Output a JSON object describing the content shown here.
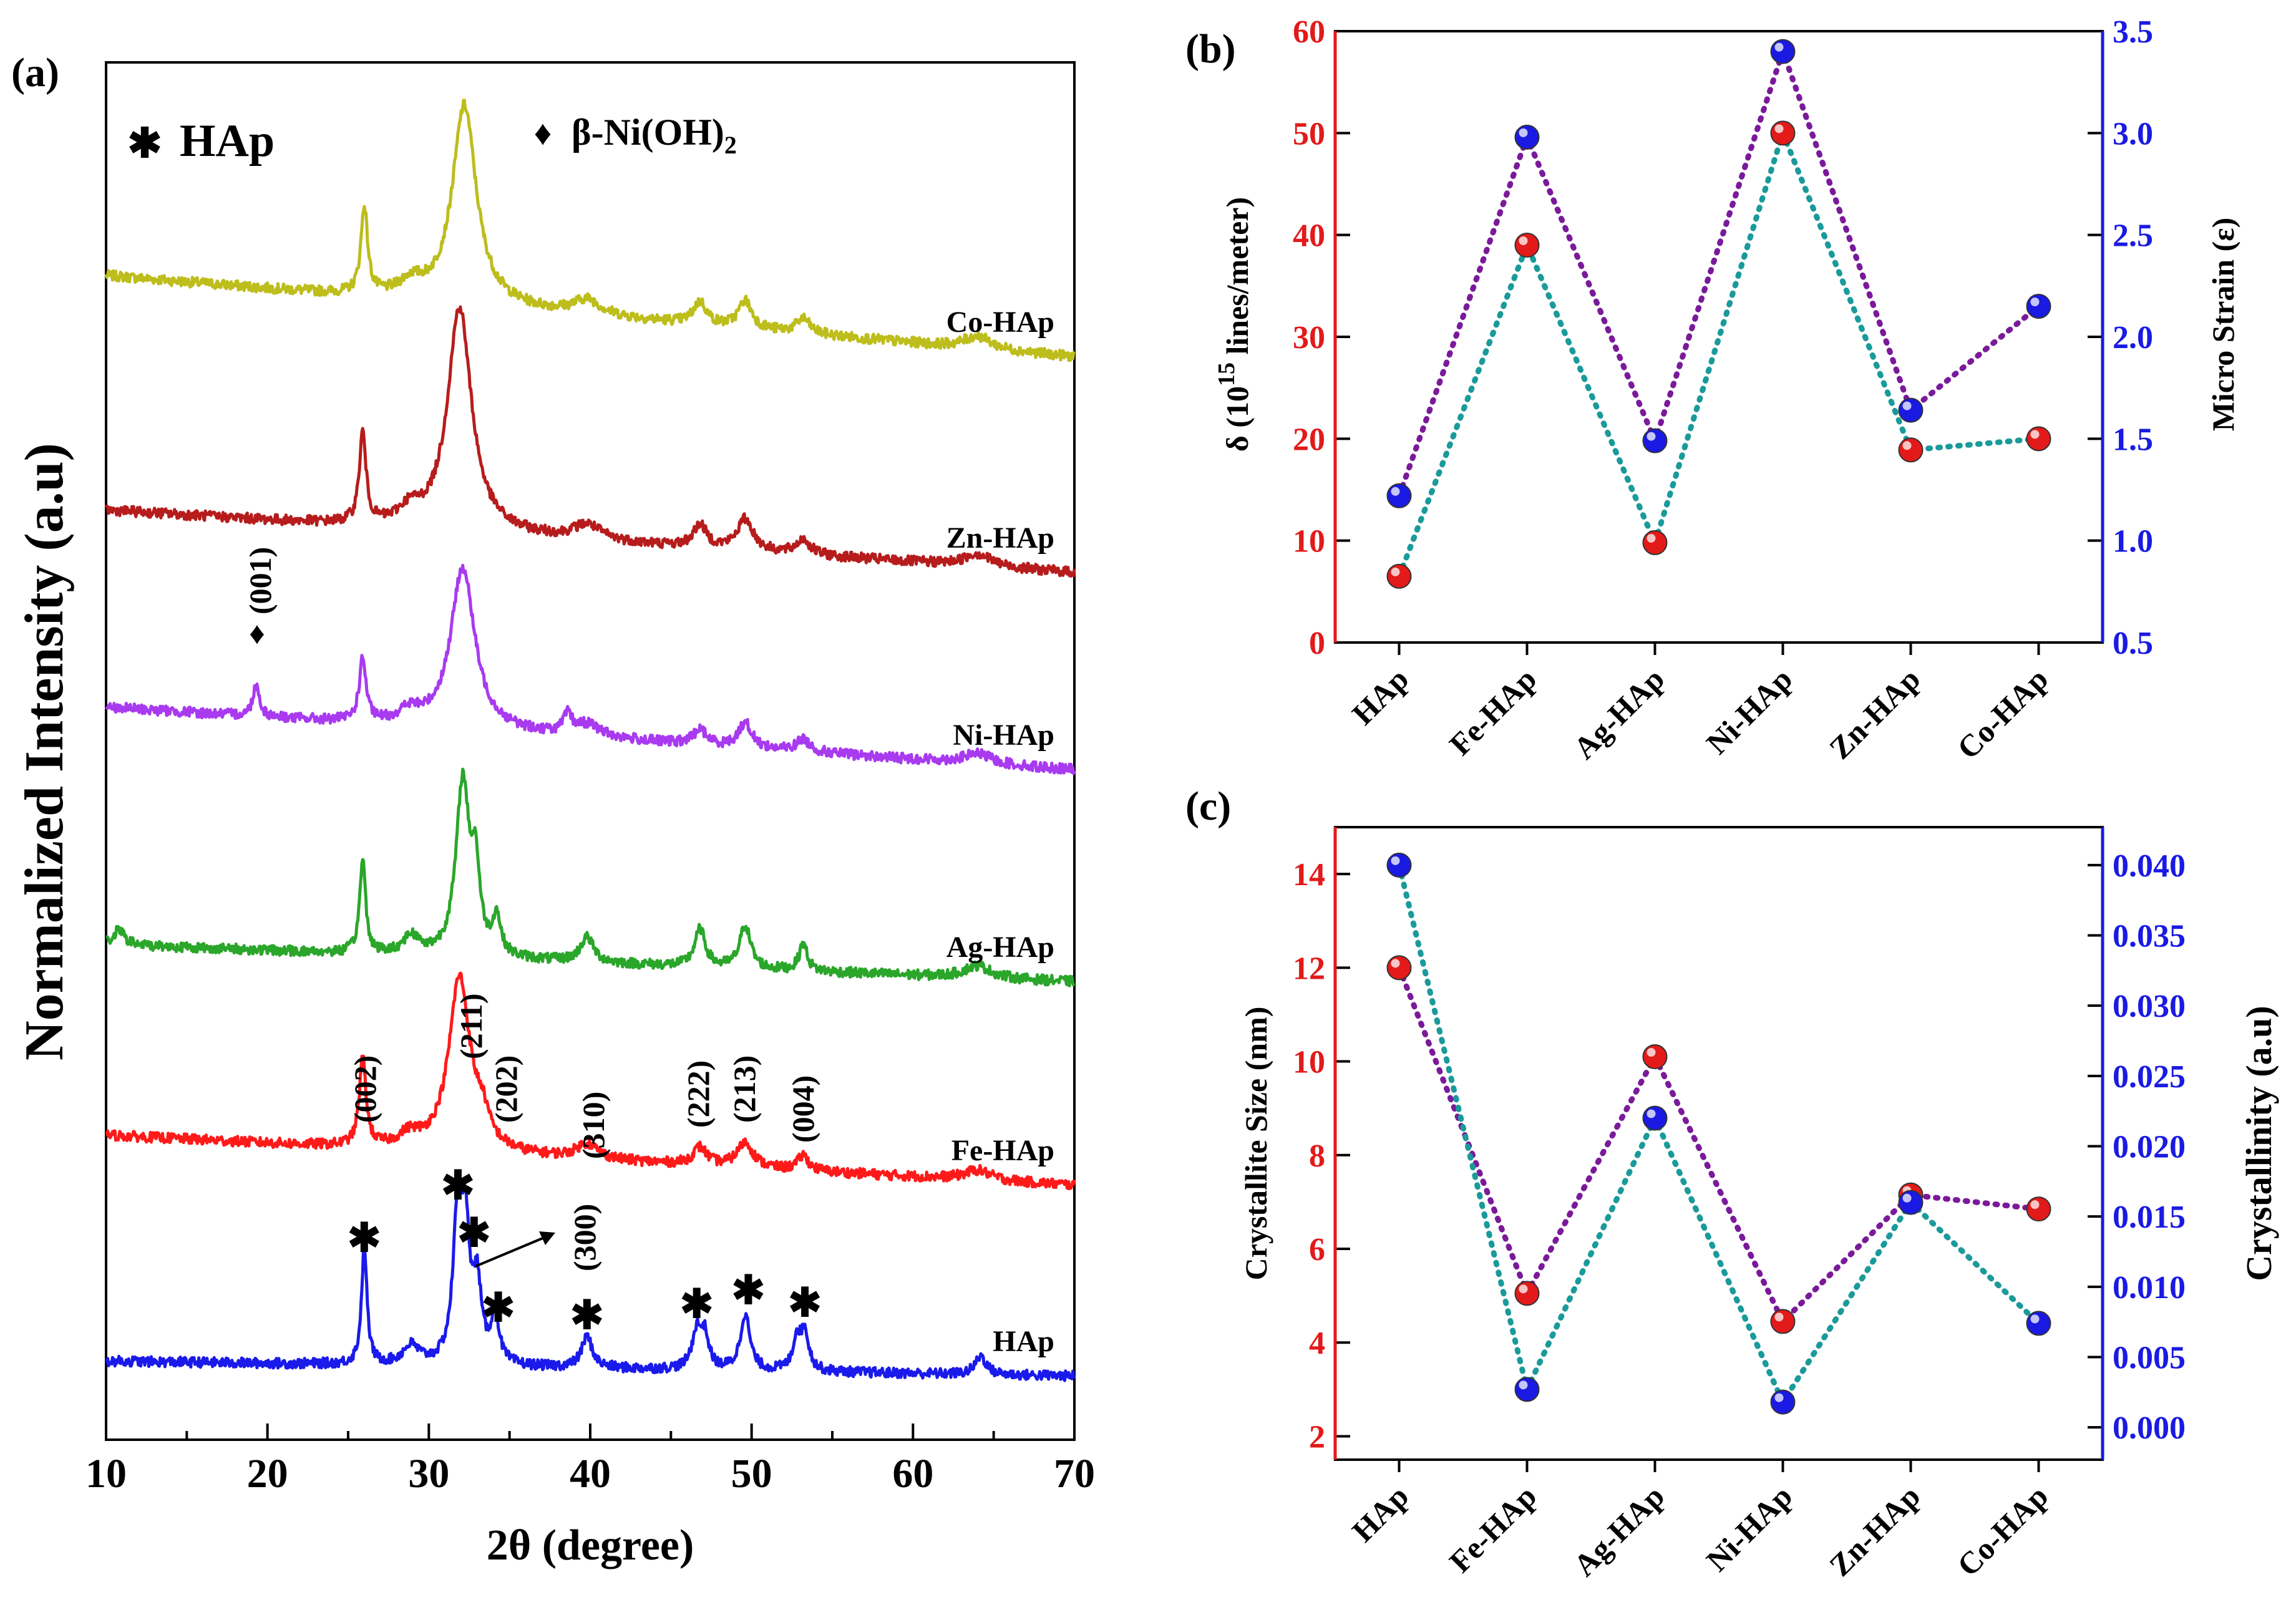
{
  "chart_data": [
    {
      "panel": "(a)",
      "type": "line",
      "title": "",
      "xlabel": "2θ (degree)",
      "ylabel": "Normalized Intensity (a.u)",
      "xlim": [
        10,
        70
      ],
      "xticks": [
        10,
        20,
        30,
        40,
        50,
        60,
        70
      ],
      "legend": {
        "hap_marker": "✱",
        "hap_label": "HAp",
        "ni_marker": "♦",
        "ni_label": "β-Ni(OH)",
        "ni_sub": "2"
      },
      "series": [
        {
          "name": "Co-HAp",
          "color": "#bdbd1c",
          "baseline": 0.82,
          "slope": 0.065,
          "peaks": [
            [
              26.0,
              0.07,
              0.25
            ],
            [
              28.9,
              0.012,
              0.9
            ],
            [
              32.2,
              0.16,
              0.9
            ],
            [
              39.8,
              0.012,
              1
            ],
            [
              46.8,
              0.018,
              0.5
            ],
            [
              49.6,
              0.022,
              0.5
            ],
            [
              53.2,
              0.012,
              0.5
            ],
            [
              64.0,
              0.01,
              1
            ]
          ]
        },
        {
          "name": "Zn-HAp",
          "color": "#b71c1c",
          "baseline": 0.647,
          "slope": 0.05,
          "peaks": [
            [
              25.9,
              0.072,
              0.25
            ],
            [
              28.8,
              0.012,
              0.8
            ],
            [
              31.9,
              0.18,
              0.9
            ],
            [
              39.8,
              0.012,
              1
            ],
            [
              46.8,
              0.018,
              0.5
            ],
            [
              49.6,
              0.025,
              0.6
            ],
            [
              53.2,
              0.012,
              0.5
            ],
            [
              64.0,
              0.01,
              1
            ]
          ]
        },
        {
          "name": "Ni-HAp",
          "color": "#a83af0",
          "baseline": 0.489,
          "slope": 0.05,
          "peaks": [
            [
              19.3,
              0.025,
              0.25
            ],
            [
              25.9,
              0.05,
              0.25
            ],
            [
              28.8,
              0.01,
              0.8
            ],
            [
              32.1,
              0.13,
              0.9
            ],
            [
              38.6,
              0.014,
              0.3
            ],
            [
              39.8,
              0.01,
              1
            ],
            [
              46.8,
              0.012,
              0.5
            ],
            [
              49.6,
              0.02,
              0.5
            ],
            [
              53.2,
              0.01,
              0.5
            ],
            [
              64.0,
              0.008,
              1
            ]
          ]
        },
        {
          "name": "Ag-HAp",
          "color": "#2aa62a",
          "baseline": 0.319,
          "slope": 0.03,
          "peaks": [
            [
              10.8,
              0.012,
              0.4
            ],
            [
              25.9,
              0.075,
              0.22
            ],
            [
              28.9,
              0.015,
              0.6
            ],
            [
              32.1,
              0.14,
              0.5
            ],
            [
              32.9,
              0.06,
              0.3
            ],
            [
              34.2,
              0.03,
              0.3
            ],
            [
              39.8,
              0.02,
              0.5
            ],
            [
              46.8,
              0.03,
              0.4
            ],
            [
              49.6,
              0.035,
              0.4
            ],
            [
              53.2,
              0.022,
              0.3
            ],
            [
              64.0,
              0.01,
              1
            ]
          ]
        },
        {
          "name": "Fe-HAp",
          "color": "#ff1a1a",
          "baseline": 0.156,
          "slope": 0.04,
          "peaks": [
            [
              25.9,
              0.07,
              0.25
            ],
            [
              28.8,
              0.01,
              0.8
            ],
            [
              31.9,
              0.14,
              0.8
            ],
            [
              33.3,
              0.02,
              0.5
            ],
            [
              39.8,
              0.012,
              0.8
            ],
            [
              46.8,
              0.014,
              0.5
            ],
            [
              49.6,
              0.02,
              0.6
            ],
            [
              53.2,
              0.012,
              0.4
            ],
            [
              64.0,
              0.008,
              1
            ]
          ]
        },
        {
          "name": "HAp",
          "color": "#1a1aeb",
          "baseline": 0.003,
          "slope": 0.012,
          "peaks": [
            [
              26.0,
              0.095,
              0.2
            ],
            [
              28.9,
              0.015,
              0.6
            ],
            [
              31.8,
              0.12,
              0.35
            ],
            [
              32.3,
              0.09,
              0.3
            ],
            [
              33.0,
              0.06,
              0.3
            ],
            [
              34.1,
              0.04,
              0.3
            ],
            [
              39.8,
              0.025,
              0.4
            ],
            [
              46.6,
              0.03,
              0.35
            ],
            [
              47.1,
              0.025,
              0.3
            ],
            [
              49.6,
              0.045,
              0.35
            ],
            [
              52.8,
              0.025,
              0.3
            ],
            [
              53.3,
              0.03,
              0.3
            ],
            [
              64.2,
              0.015,
              0.4
            ]
          ]
        }
      ],
      "hkl_labels": [
        "(002)",
        "(211)",
        "(202)",
        "(310)",
        "(222)",
        "(213)",
        "(004)",
        "(300)",
        "(001)"
      ],
      "hap_star_positions": [
        26.0,
        31.8,
        32.8,
        34.3,
        39.8,
        46.6,
        49.8,
        53.3
      ]
    },
    {
      "panel": "(b)",
      "type": "scatter",
      "categories": [
        "HAp",
        "Fe-HAp",
        "Ag-HAp",
        "Ni-HAp",
        "Zn-HAp",
        "Co-HAp"
      ],
      "series": [
        {
          "name": "δ",
          "axis": "left",
          "color": "#e31a1a",
          "values": [
            6.5,
            39.0,
            9.8,
            50.0,
            18.9,
            20.0
          ]
        },
        {
          "name": "Micro Strain",
          "axis": "right",
          "color": "#1a1ae3",
          "values": [
            1.22,
            2.98,
            1.49,
            3.4,
            1.64,
            2.15
          ]
        }
      ],
      "left_axis": {
        "label": "δ (10",
        "label_sup": "15",
        "label_end": " lines/meter)",
        "ylim": [
          0,
          60
        ],
        "ticks": [
          0,
          10,
          20,
          30,
          40,
          50,
          60
        ],
        "color": "#e31a1a"
      },
      "right_axis": {
        "label": "Micro Strain (ε)",
        "ylim": [
          0.5,
          3.5
        ],
        "ticks": [
          "0.5",
          "1.0",
          "1.5",
          "2.0",
          "2.5",
          "3.0",
          "3.5"
        ],
        "color": "#1a1ae3"
      }
    },
    {
      "panel": "(c)",
      "type": "scatter",
      "categories": [
        "HAp",
        "Fe-HAp",
        "Ag-HAp",
        "Ni-HAp",
        "Zn-HAp",
        "Co-HAp"
      ],
      "series": [
        {
          "name": "Crystallite Size",
          "axis": "left",
          "color": "#e31a1a",
          "values": [
            12.0,
            5.05,
            10.1,
            4.45,
            7.15,
            6.85
          ]
        },
        {
          "name": "Crystallinity",
          "axis": "right",
          "color": "#1a1ae3",
          "values": [
            0.04,
            0.0027,
            0.022,
            0.0018,
            0.016,
            0.0074
          ]
        }
      ],
      "left_axis": {
        "label": "Crystallite  Size  (nm)",
        "ylim": [
          1.5,
          15.0
        ],
        "ticks": [
          2,
          4,
          6,
          8,
          10,
          12,
          14
        ],
        "color": "#e31a1a"
      },
      "right_axis": {
        "label": "Crystallinity (a.u)",
        "ylim": [
          -0.0023,
          0.0427
        ],
        "ticks": [
          "0.000",
          "0.005",
          "0.010",
          "0.015",
          "0.020",
          "0.025",
          "0.030",
          "0.035",
          "0.040"
        ],
        "color": "#1a1ae3"
      }
    }
  ],
  "line_colors": {
    "teal": "#1a9a9a",
    "purple": "#7a1a9a"
  }
}
